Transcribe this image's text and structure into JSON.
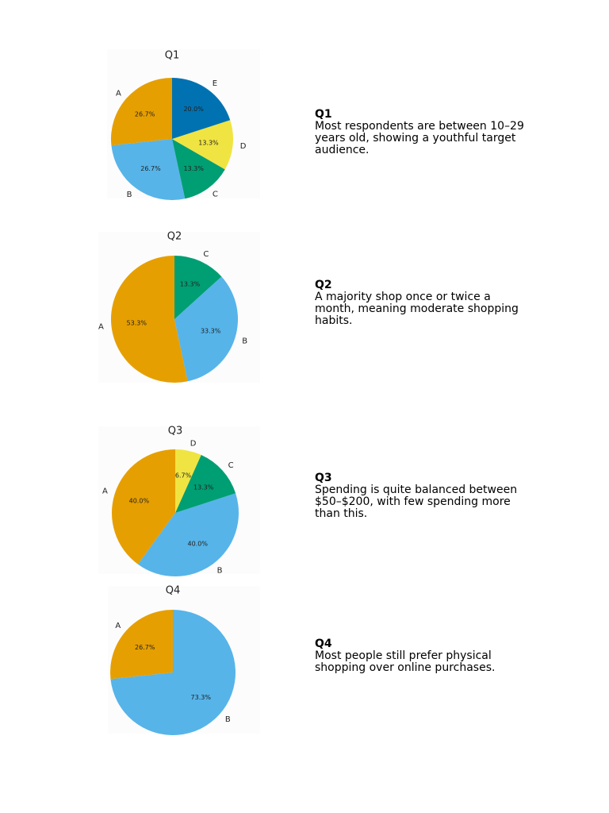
{
  "chart_data": [
    {
      "type": "pie",
      "title": "Q1",
      "categories": [
        "A",
        "B",
        "C",
        "D",
        "E"
      ],
      "values": [
        26.7,
        26.7,
        13.3,
        13.3,
        20.0
      ],
      "value_labels": [
        "26.7%",
        "26.7%",
        "13.3%",
        "13.3%",
        "20.0%"
      ],
      "colors": [
        "#e69f00",
        "#56b4e9",
        "#009e73",
        "#f0e442",
        "#0072b2"
      ]
    },
    {
      "type": "pie",
      "title": "Q2",
      "categories": [
        "A",
        "B",
        "C"
      ],
      "values": [
        53.3,
        33.3,
        13.3
      ],
      "value_labels": [
        "53.3%",
        "33.3%",
        "13.3%"
      ],
      "colors": [
        "#e69f00",
        "#56b4e9",
        "#009e73"
      ]
    },
    {
      "type": "pie",
      "title": "Q3",
      "categories": [
        "A",
        "B",
        "C",
        "D"
      ],
      "values": [
        40.0,
        40.0,
        13.3,
        6.7
      ],
      "value_labels": [
        "40.0%",
        "40.0%",
        "13.3%",
        "6.7%"
      ],
      "colors": [
        "#e69f00",
        "#56b4e9",
        "#009e73",
        "#f0e442"
      ]
    },
    {
      "type": "pie",
      "title": "Q4",
      "categories": [
        "A",
        "B"
      ],
      "values": [
        26.7,
        73.3
      ],
      "value_labels": [
        "26.7%",
        "73.3%"
      ],
      "colors": [
        "#e69f00",
        "#56b4e9"
      ]
    }
  ],
  "notes": [
    {
      "heading": "Q1",
      "text": "Most respondents are between 10–29 years old, showing a youthful target audience."
    },
    {
      "heading": "Q2",
      "text": "A majority shop once or twice a month, meaning moderate shopping habits."
    },
    {
      "heading": "Q3",
      "text": "Spending is quite balanced between $50–$200, with few spending more than this."
    },
    {
      "heading": "Q4",
      "text": "Most people still prefer physical shopping over online purchases."
    }
  ]
}
